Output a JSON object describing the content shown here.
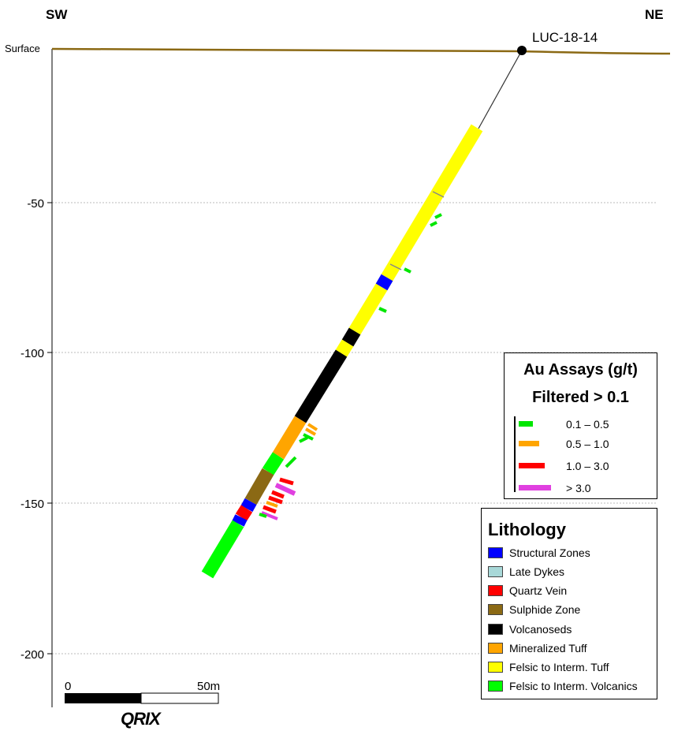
{
  "orientation": {
    "left": "SW",
    "right": "NE"
  },
  "surface_label": "Surface",
  "drillhole": {
    "name": "LUC-18-14"
  },
  "elevation_ticks": [
    "-50",
    "-100",
    "-150",
    "-200"
  ],
  "scale_bar": {
    "start_label": "0",
    "end_label": "50m"
  },
  "logo_text": "QRIX",
  "assay_legend": {
    "title_line1": "Au Assays (g/t)",
    "title_line2": "Filtered > 0.1",
    "items": [
      {
        "label": "0.1 – 0.5",
        "color": "#00e600"
      },
      {
        "label": "0.5 – 1.0",
        "color": "#ffa500"
      },
      {
        "label": "1.0 – 3.0",
        "color": "#ff0000"
      },
      {
        "label": "> 3.0",
        "color": "#e040e0"
      }
    ]
  },
  "lithology_legend": {
    "title": "Lithology",
    "items": [
      {
        "label": "Structural Zones",
        "color": "#0000ff"
      },
      {
        "label": "Late Dykes",
        "color": "#a8d8d8"
      },
      {
        "label": "Quartz Vein",
        "color": "#ff0000"
      },
      {
        "label": "Sulphide Zone",
        "color": "#8b6914"
      },
      {
        "label": "Volcanoseds",
        "color": "#000000"
      },
      {
        "label": "Mineralized Tuff",
        "color": "#ffa500"
      },
      {
        "label": "Felsic to Interm. Tuff",
        "color": "#ffff00"
      },
      {
        "label": "Felsic to Interm. Volcanics",
        "color": "#00ff00"
      }
    ]
  },
  "colors": {
    "surface_line": "#8b6914",
    "grid": "#bbbbbb"
  }
}
